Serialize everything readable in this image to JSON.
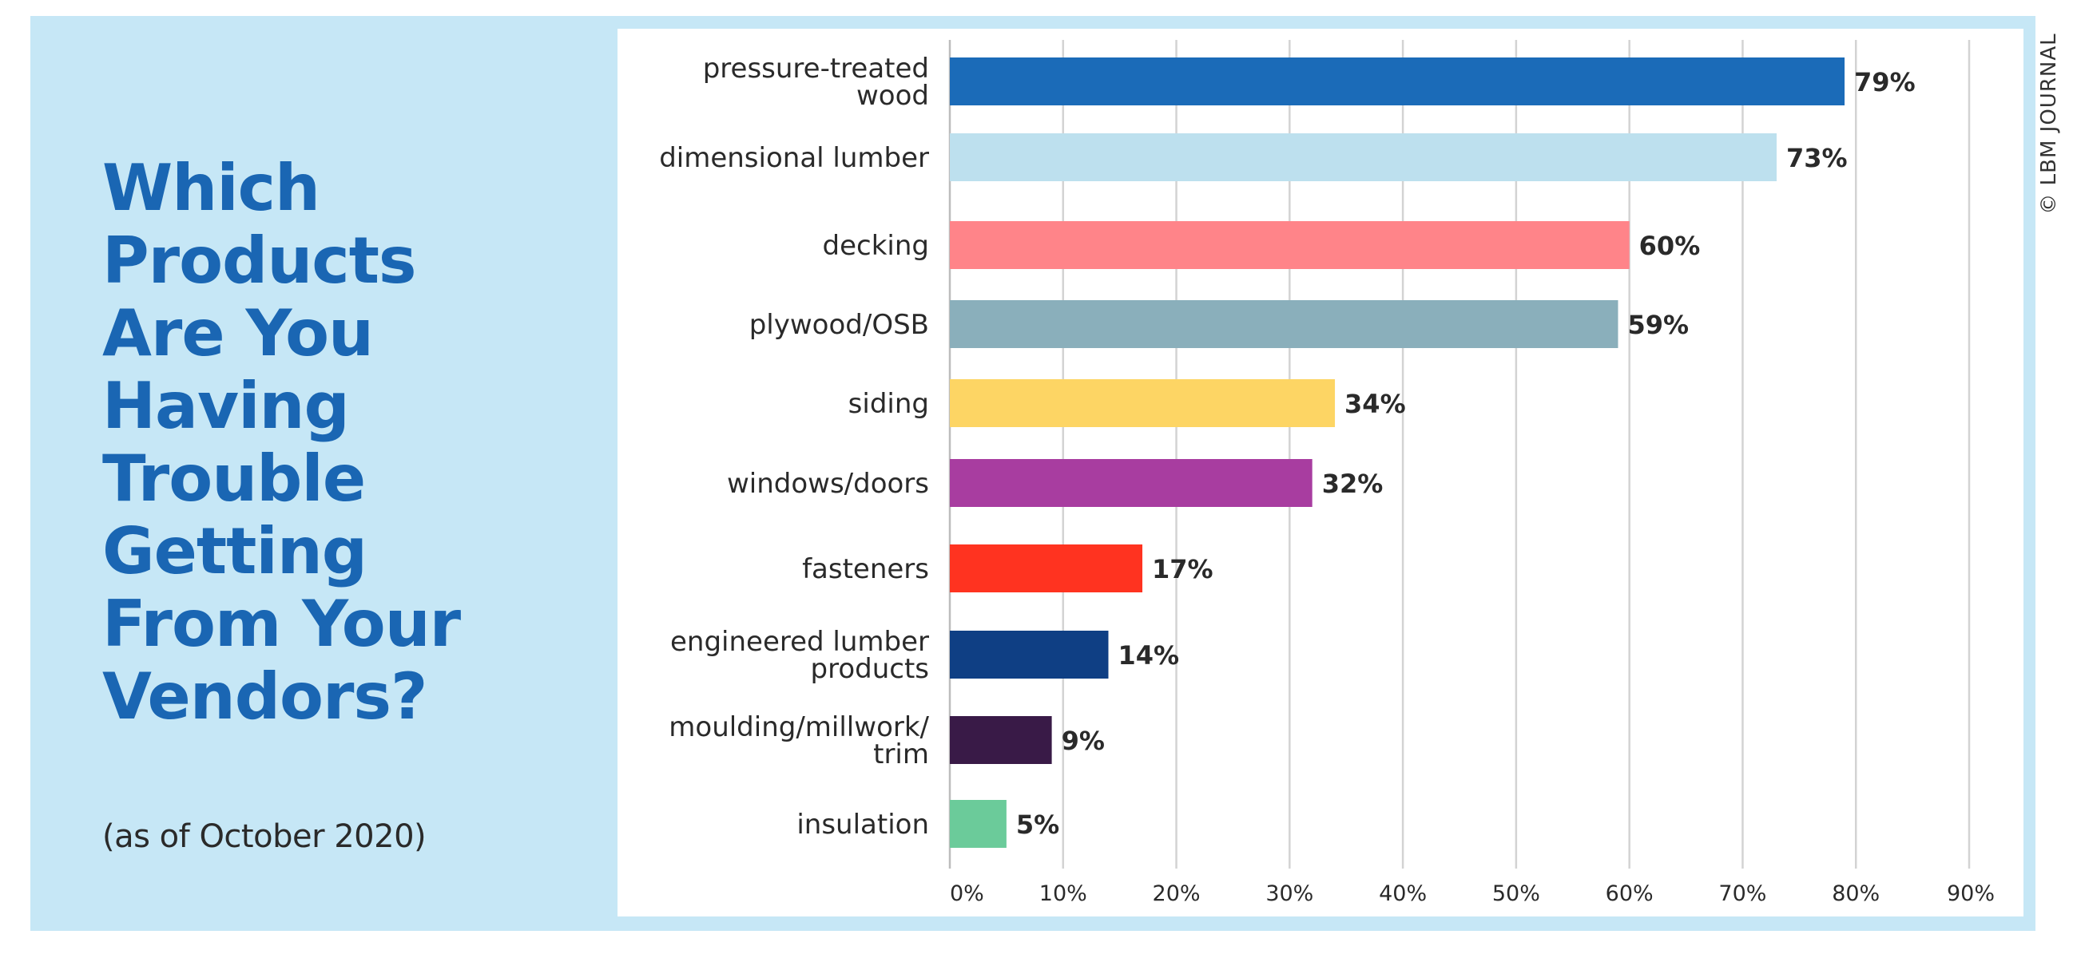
{
  "title": "Which Products Are You Having Trouble Getting From Your Vendors?",
  "subtitle": "(as of October 2020)",
  "credit": "© LBM JOURNAL",
  "chart_data": {
    "type": "bar",
    "orientation": "horizontal",
    "categories": [
      "pressure-treated wood",
      "dimensional lumber",
      "decking",
      "plywood/OSB",
      "siding",
      "windows/doors",
      "fasteners",
      "engineered lumber products",
      "moulding/millwork/ trim",
      "insulation"
    ],
    "category_lines": [
      [
        "pressure-treated",
        "wood"
      ],
      [
        "dimensional lumber"
      ],
      [
        "decking"
      ],
      [
        "plywood/OSB"
      ],
      [
        "siding"
      ],
      [
        "windows/doors"
      ],
      [
        "fasteners"
      ],
      [
        "engineered lumber",
        "products"
      ],
      [
        "moulding/millwork/",
        "trim"
      ],
      [
        "insulation"
      ]
    ],
    "values": [
      79,
      73,
      60,
      59,
      34,
      32,
      17,
      14,
      9,
      5
    ],
    "value_labels": [
      "79%",
      "73%",
      "60%",
      "59%",
      "34%",
      "32%",
      "17%",
      "14%",
      "9%",
      "5%"
    ],
    "colors": [
      "#1b6bb8",
      "#bde0ee",
      "#ff8489",
      "#8aafbb",
      "#fdd564",
      "#a83da0",
      "#ff3320",
      "#0f3f84",
      "#391a47",
      "#6bcb9a"
    ],
    "xlim": [
      0,
      90
    ],
    "xticks": [
      0,
      10,
      20,
      30,
      40,
      50,
      60,
      70,
      80,
      90
    ],
    "xtick_labels": [
      "0%",
      "10%",
      "20%",
      "30%",
      "40%",
      "50%",
      "60%",
      "70%",
      "80%",
      "90%"
    ],
    "grid": true,
    "xlabel": "",
    "ylabel": ""
  }
}
